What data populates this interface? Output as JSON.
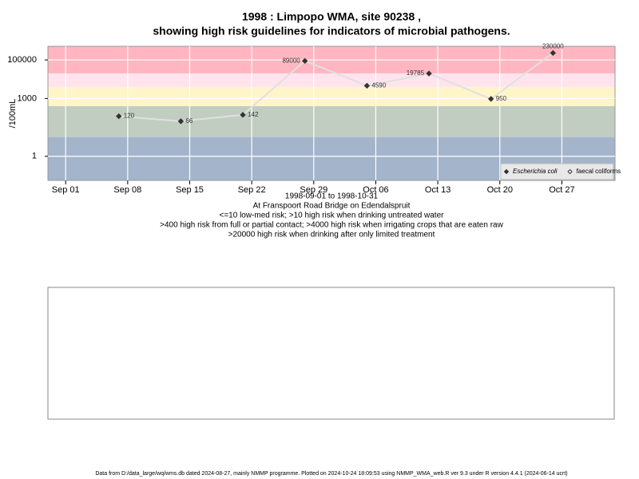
{
  "chart_data": {
    "type": "line",
    "title": "1998 : Limpopo WMA, site 90238 ,",
    "subtitle": "showing high risk guidelines for indicators of microbial pathogens.",
    "x_label_lines": [
      "1998-09-01 to 1998-10-31",
      "At Franspoort Road Bridge on Edendalspruit",
      "<=10 low-med risk; >10 high risk when drinking untreated water",
      ">400 high risk from full or partial contact; >4000 high risk when irrigating crops that are eaten raw",
      ">20000 high risk when drinking after only limited treatment"
    ],
    "y_label": "/100mL",
    "x": [
      "1998-09-07",
      "1998-09-14",
      "1998-09-21",
      "1998-09-28",
      "1998-10-05",
      "1998-10-12",
      "1998-10-19",
      "1998-10-26"
    ],
    "series": [
      {
        "name": "Escherichia coli",
        "color": "#333333",
        "line_color": "#e0e0e0",
        "values": [
          120,
          66,
          142,
          89000,
          4590,
          19785,
          950,
          230000
        ]
      },
      {
        "name": "faecal coliforms",
        "color": "#ffffff",
        "line_color": "#e0e0e0",
        "values": [
          null,
          null,
          null,
          null,
          null,
          null,
          null,
          null
        ]
      }
    ],
    "xlim": [
      "1998-08-30",
      "1998-11-02"
    ],
    "xticks": [
      {
        "value": "1998-09-01",
        "label": "Sep 01"
      },
      {
        "value": "1998-09-08",
        "label": "Sep 08"
      },
      {
        "value": "1998-09-15",
        "label": "Sep 15"
      },
      {
        "value": "1998-09-22",
        "label": "Sep 22"
      },
      {
        "value": "1998-09-29",
        "label": "Sep 29"
      },
      {
        "value": "1998-10-06",
        "label": "Oct 06"
      },
      {
        "value": "1998-10-13",
        "label": "Oct 13"
      },
      {
        "value": "1998-10-20",
        "label": "Oct 20"
      },
      {
        "value": "1998-10-27",
        "label": "Oct 27"
      }
    ],
    "ylim": [
      0.056,
      510000
    ],
    "yticks": [
      1,
      1000,
      100000
    ],
    "log_y": true,
    "grid": true,
    "legend": "bottom-right",
    "bands": [
      {
        "from": 0.056,
        "to": 10,
        "color": "#a3b4cb"
      },
      {
        "from": 10,
        "to": 400,
        "color": "#c1cdc1"
      },
      {
        "from": 400,
        "to": 4000,
        "color": "#fff5c8"
      },
      {
        "from": 4000,
        "to": 20000,
        "color": "#ffe4ee"
      },
      {
        "from": 20000,
        "to": 510000,
        "color": "#ffb6c1"
      }
    ],
    "footer": "Data from D:/data_large/wq/wms.db dated 2024-08-27, mainly NMMP programme. Plotted on 2024-10-24 18:09:53 using NMMP_WMA_web.R ver 9.3 under R version 4.4.1 (2024-06-14 ucrt)"
  }
}
